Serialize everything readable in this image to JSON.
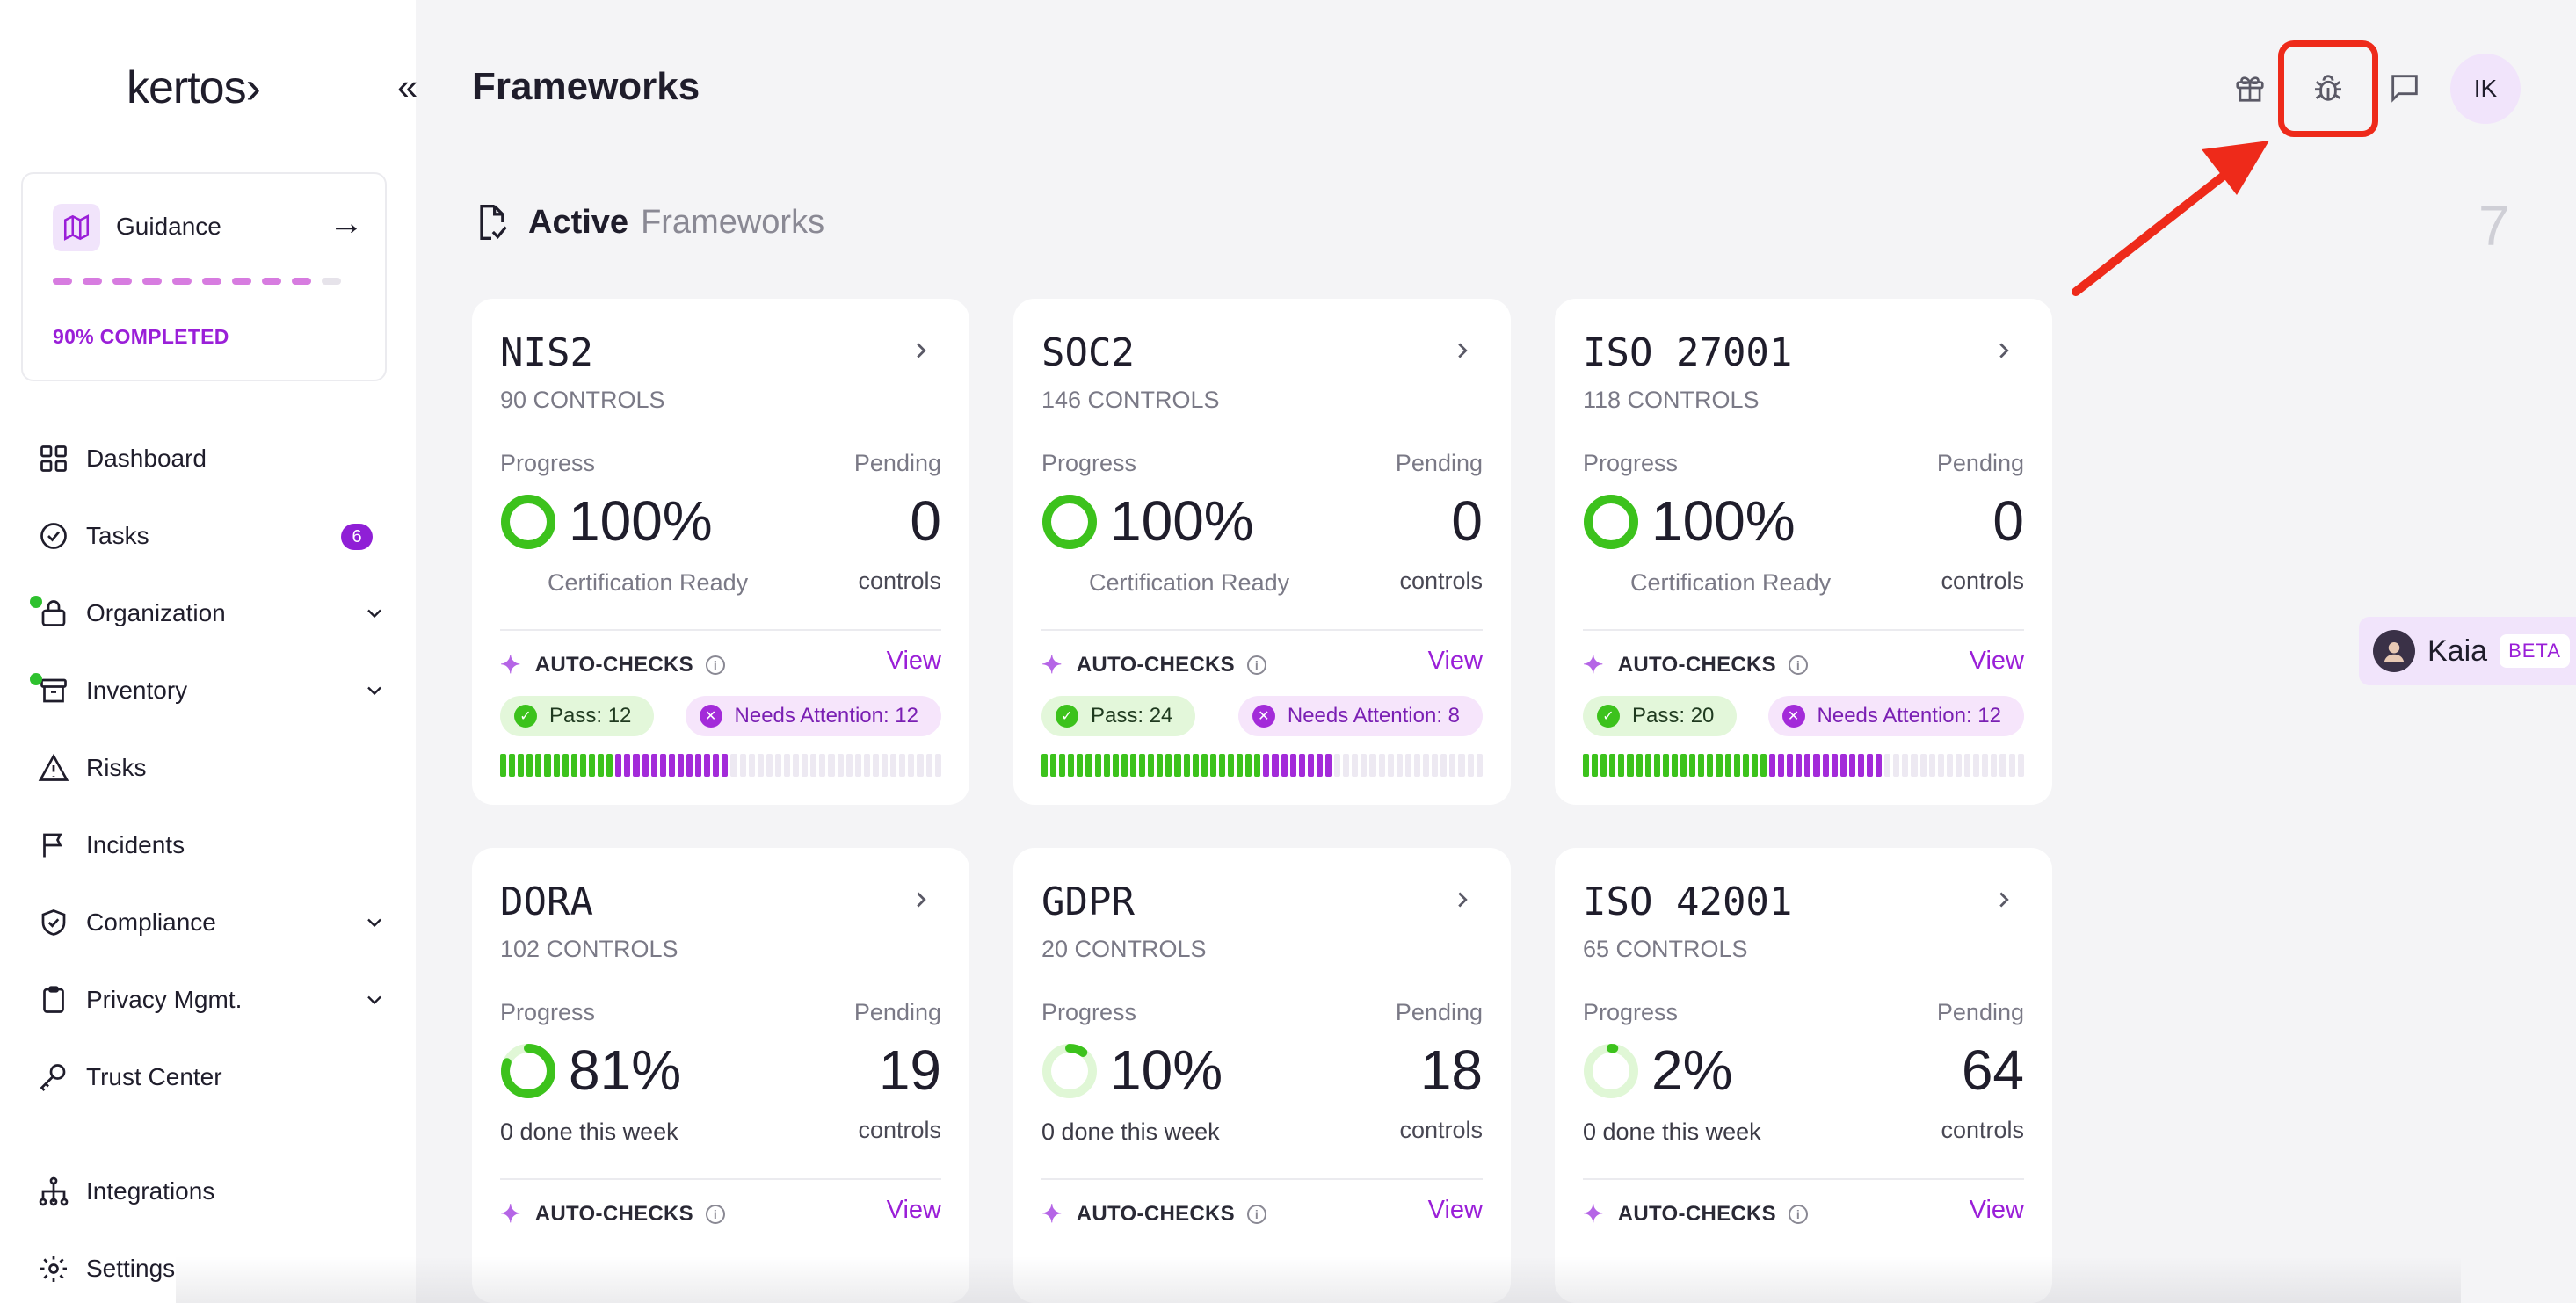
{
  "app": {
    "logo_text": "kertos›"
  },
  "sidebar": {
    "guidance": {
      "label": "Guidance",
      "progress_text": "90% COMPLETED",
      "progress_fraction": 0.9
    },
    "items": [
      {
        "label": "Dashboard",
        "icon": "grid-icon"
      },
      {
        "label": "Tasks",
        "icon": "check-circle-icon",
        "badge": "6"
      },
      {
        "label": "Organization",
        "icon": "lock-icon",
        "expandable": true
      },
      {
        "label": "Inventory",
        "icon": "archive-icon",
        "expandable": true
      },
      {
        "label": "Risks",
        "icon": "warning-icon"
      },
      {
        "label": "Incidents",
        "icon": "flag-icon"
      },
      {
        "label": "Compliance",
        "icon": "shield-check-icon",
        "expandable": true
      },
      {
        "label": "Privacy Mgmt.",
        "icon": "clipboard-icon",
        "expandable": true
      },
      {
        "label": "Trust Center",
        "icon": "key-icon"
      },
      {
        "label": "Integrations",
        "icon": "network-icon"
      },
      {
        "label": "Settings",
        "icon": "gear-icon"
      }
    ]
  },
  "header": {
    "title": "Frameworks",
    "avatar_initials": "IK",
    "icons": [
      "gift-icon",
      "bug-icon",
      "chat-icon"
    ]
  },
  "section": {
    "title_bold": "Active",
    "title_light": "Frameworks",
    "count": "7"
  },
  "labels": {
    "progress": "Progress",
    "pending": "Pending",
    "controls": "controls",
    "auto_checks": "AUTO-CHECKS",
    "view": "View"
  },
  "frameworks": [
    {
      "name": "NIS2",
      "controls": "90 CONTROLS",
      "progress": "100%",
      "progress_fraction": 1.0,
      "pending": "0",
      "subtitle": "Certification Ready",
      "pass": "Pass: 12",
      "needs": "Needs Attention: 12",
      "pass_count": 12,
      "needs_count": 12
    },
    {
      "name": "SOC2",
      "controls": "146 CONTROLS",
      "progress": "100%",
      "progress_fraction": 1.0,
      "pending": "0",
      "subtitle": "Certification Ready",
      "pass": "Pass: 24",
      "needs": "Needs Attention: 8",
      "pass_count": 24,
      "needs_count": 8
    },
    {
      "name": "ISO 27001",
      "controls": "118 CONTROLS",
      "progress": "100%",
      "progress_fraction": 1.0,
      "pending": "0",
      "subtitle": "Certification Ready",
      "pass": "Pass: 20",
      "needs": "Needs Attention: 12",
      "pass_count": 20,
      "needs_count": 12
    },
    {
      "name": "DORA",
      "controls": "102 CONTROLS",
      "progress": "81%",
      "progress_fraction": 0.81,
      "pending": "19",
      "subtitle": "0 done this week"
    },
    {
      "name": "GDPR",
      "controls": "20 CONTROLS",
      "progress": "10%",
      "progress_fraction": 0.1,
      "pending": "18",
      "subtitle": "0 done this week"
    },
    {
      "name": "ISO 42001",
      "controls": "65 CONTROLS",
      "progress": "2%",
      "progress_fraction": 0.02,
      "pending": "64",
      "subtitle": "0 done this week"
    }
  ],
  "kaia": {
    "name": "Kaia",
    "badge": "BETA"
  },
  "colors": {
    "accent": "#9a1fd8",
    "pass": "#3cc21c",
    "attention": "#a32bd9",
    "highlight": "#ee2a1a"
  }
}
